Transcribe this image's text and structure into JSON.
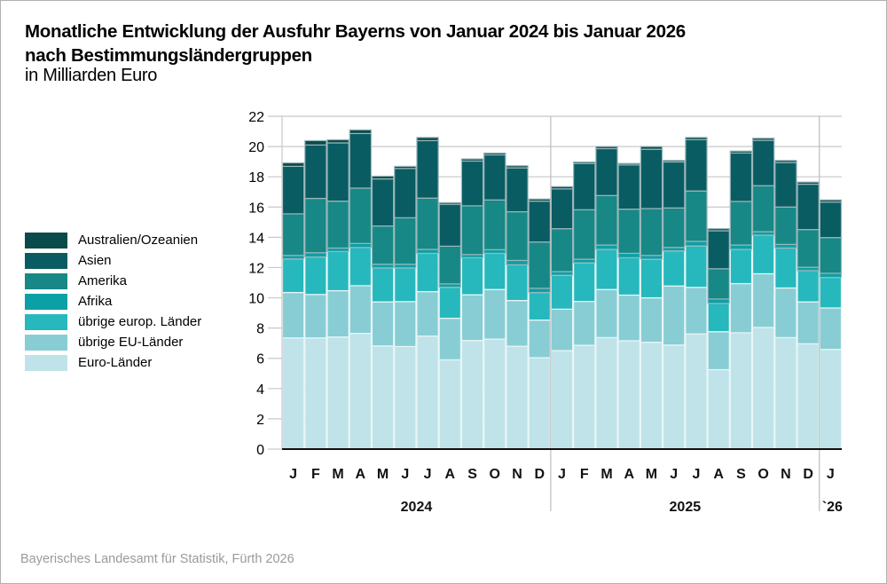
{
  "chart_data": {
    "type": "bar",
    "stacked": true,
    "title": "Monatliche Entwicklung der Ausfuhr Bayerns von Januar 2024 bis Januar 2026",
    "title_line2": "nach Bestimmungsländergruppen",
    "subtitle": "in Milliarden Euro",
    "xlabel": "",
    "ylabel": "",
    "ylim": [
      0,
      22
    ],
    "yticks": [
      0,
      2,
      4,
      6,
      8,
      10,
      12,
      14,
      16,
      18,
      20,
      22
    ],
    "grid": true,
    "legend_position": "left",
    "categories": [
      "J",
      "F",
      "M",
      "A",
      "M",
      "J",
      "J",
      "A",
      "S",
      "O",
      "N",
      "D",
      "J",
      "F",
      "M",
      "A",
      "M",
      "J",
      "J",
      "A",
      "S",
      "O",
      "N",
      "D",
      "J"
    ],
    "year_groups": [
      {
        "label": "2024",
        "count": 12
      },
      {
        "label": "2025",
        "count": 12
      },
      {
        "label": "`26",
        "count": 1
      }
    ],
    "series": [
      {
        "name": "Euro-Länder",
        "color": "#bfe3e8",
        "values": [
          7.35,
          7.35,
          7.41,
          7.65,
          6.82,
          6.78,
          7.47,
          5.9,
          7.18,
          7.27,
          6.8,
          6.04,
          6.51,
          6.86,
          7.37,
          7.16,
          7.06,
          6.88,
          7.61,
          5.25,
          7.69,
          8.04,
          7.37,
          6.96,
          6.59
        ]
      },
      {
        "name": "übrige EU-Länder",
        "color": "#88cdd4",
        "values": [
          3.0,
          2.87,
          3.06,
          3.15,
          2.91,
          2.97,
          2.94,
          2.75,
          3.02,
          3.28,
          3.02,
          2.49,
          2.74,
          2.9,
          3.18,
          3.02,
          2.94,
          3.9,
          3.08,
          2.51,
          3.25,
          3.55,
          3.28,
          2.77,
          2.74
        ]
      },
      {
        "name": "übrige europ. Länder",
        "color": "#26b8bc",
        "values": [
          2.22,
          2.48,
          2.59,
          2.53,
          2.25,
          2.23,
          2.53,
          2.05,
          2.45,
          2.39,
          2.36,
          1.82,
          2.24,
          2.55,
          2.65,
          2.47,
          2.55,
          2.32,
          2.74,
          1.87,
          2.26,
          2.55,
          2.64,
          2.07,
          2.02
        ]
      },
      {
        "name": "Afrika",
        "color": "#0aa0a6",
        "values": [
          0.23,
          0.28,
          0.23,
          0.26,
          0.24,
          0.24,
          0.26,
          0.22,
          0.21,
          0.24,
          0.29,
          0.28,
          0.24,
          0.24,
          0.29,
          0.29,
          0.25,
          0.23,
          0.3,
          0.29,
          0.29,
          0.23,
          0.24,
          0.22,
          0.27
        ]
      },
      {
        "name": "Amerika",
        "color": "#178886",
        "values": [
          2.75,
          3.59,
          3.1,
          3.66,
          2.53,
          3.07,
          3.39,
          2.49,
          3.22,
          3.29,
          3.22,
          3.06,
          2.84,
          3.27,
          3.27,
          2.92,
          3.1,
          2.61,
          3.33,
          2.0,
          2.88,
          3.04,
          2.47,
          2.49,
          2.36
        ]
      },
      {
        "name": "Asien",
        "color": "#0a5c63",
        "values": [
          3.14,
          3.53,
          3.85,
          3.61,
          3.11,
          3.26,
          3.8,
          2.77,
          2.96,
          2.98,
          2.9,
          2.7,
          2.63,
          3.06,
          3.1,
          2.92,
          3.92,
          3.04,
          3.39,
          2.51,
          3.2,
          3.0,
          2.94,
          3.0,
          2.35
        ]
      },
      {
        "name": "Australien/Ozeanien",
        "color": "#0b4a4a",
        "values": [
          0.23,
          0.29,
          0.21,
          0.24,
          0.18,
          0.14,
          0.21,
          0.11,
          0.14,
          0.12,
          0.14,
          0.14,
          0.15,
          0.1,
          0.14,
          0.1,
          0.18,
          0.1,
          0.15,
          0.14,
          0.13,
          0.14,
          0.14,
          0.14,
          0.14
        ]
      }
    ]
  },
  "legend": {
    "items": [
      {
        "label": "Australien/Ozeanien",
        "color": "#0b4a4a"
      },
      {
        "label": "Asien",
        "color": "#0a5c63"
      },
      {
        "label": "Amerika",
        "color": "#178886"
      },
      {
        "label": "Afrika",
        "color": "#0aa0a6"
      },
      {
        "label": "übrige europ. Länder",
        "color": "#26b8bc"
      },
      {
        "label": "übrige EU-Länder",
        "color": "#88cdd4"
      },
      {
        "label": "Euro-Länder",
        "color": "#bfe3e8"
      }
    ]
  },
  "source": "Bayerisches Landesamt für Statistik, Fürth 2026"
}
